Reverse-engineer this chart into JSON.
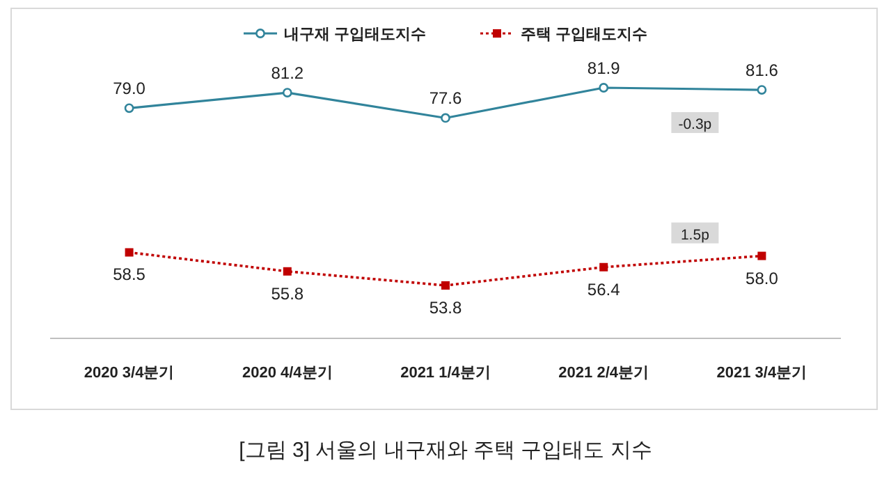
{
  "chart_data": {
    "type": "line",
    "categories": [
      "2020 3/4분기",
      "2020 4/4분기",
      "2021 1/4분기",
      "2021 2/4분기",
      "2021 3/4분기"
    ],
    "series": [
      {
        "name": "내구재 구입태도지수",
        "color": "#31849b",
        "values": [
          79.0,
          81.2,
          77.6,
          81.9,
          81.6
        ],
        "value_labels": [
          "79.0",
          "81.2",
          "77.6",
          "81.9",
          "81.6"
        ],
        "marker": "circle",
        "line_style": "solid"
      },
      {
        "name": "주택 구입태도지수",
        "color": "#c00000",
        "values": [
          58.5,
          55.8,
          53.8,
          56.4,
          58.0
        ],
        "value_labels": [
          "58.5",
          "55.8",
          "53.8",
          "56.4",
          "58.0"
        ],
        "marker": "square",
        "line_style": "dotted"
      }
    ],
    "tick_labels": "x",
    "legend": "top",
    "annotations": [
      "-0.3p",
      "1.5p",
      "[그림 3] 서울의 내구재와 주택 구입태도 지수"
    ]
  }
}
